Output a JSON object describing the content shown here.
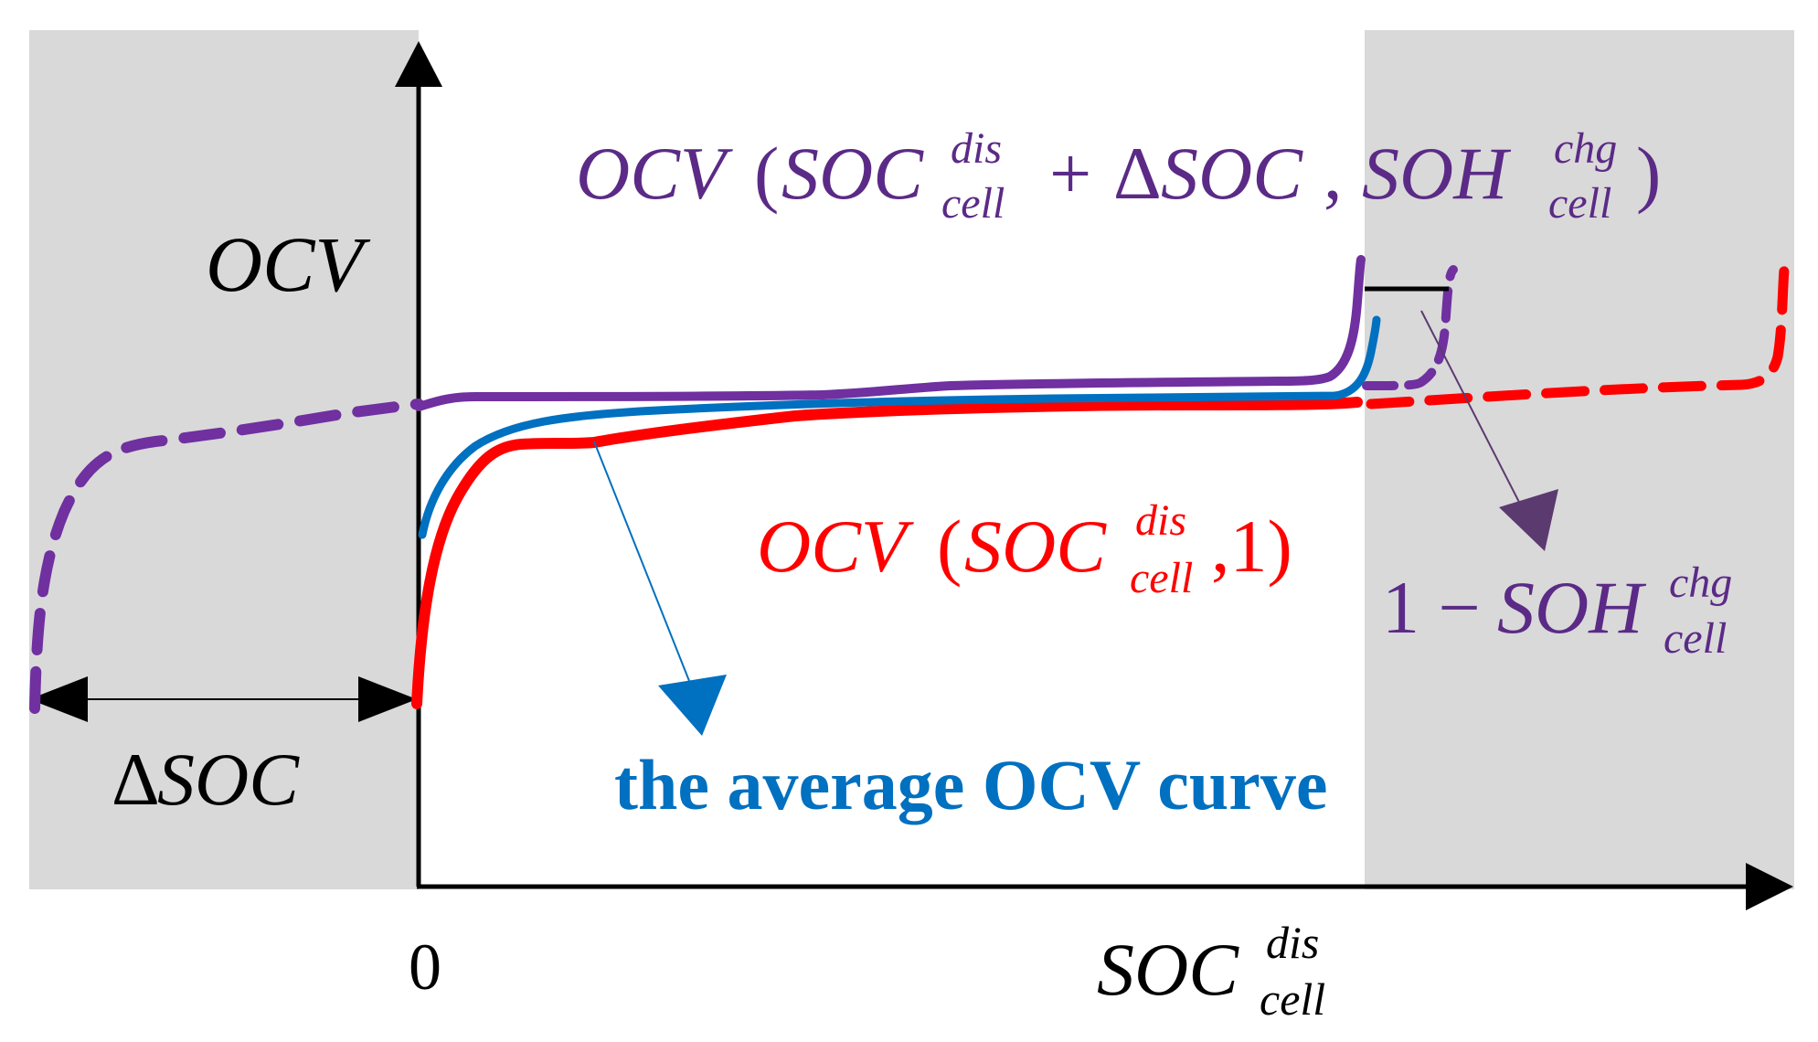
{
  "colors": {
    "shade": "#d9d9d9",
    "axis": "#000000",
    "purple": "#7030a0",
    "red": "#ff0000",
    "blue": "#0070c0",
    "dark_purple_arrow": "#5b3a70"
  },
  "axes": {
    "y_label": "OCV",
    "origin_label": "0",
    "x_label_main": "SOC",
    "x_label_sup": "dis",
    "x_label_sub": "cell"
  },
  "delta_soc": {
    "label_symbol": "Δ",
    "label_text": "SOC"
  },
  "labels": {
    "purple_curve": {
      "func": "OCV",
      "open": "(",
      "arg1_main": "SOC",
      "arg1_sup": "dis",
      "arg1_sub": "cell",
      "plus": "+",
      "delta": "Δ",
      "delta_soc": "SOC",
      "comma": ",",
      "arg2_main": "SOH",
      "arg2_sup": "chg",
      "arg2_sub": "cell",
      "close": ")"
    },
    "red_curve": {
      "func": "OCV",
      "open": "(",
      "arg_main": "SOC",
      "arg_sup": "dis",
      "arg_sub": "cell",
      "rest": ",1)"
    },
    "soh_gap": {
      "one_minus": "1 −",
      "main": "SOH",
      "sup": "chg",
      "sub": "cell"
    },
    "average": "the average OCV curve"
  }
}
